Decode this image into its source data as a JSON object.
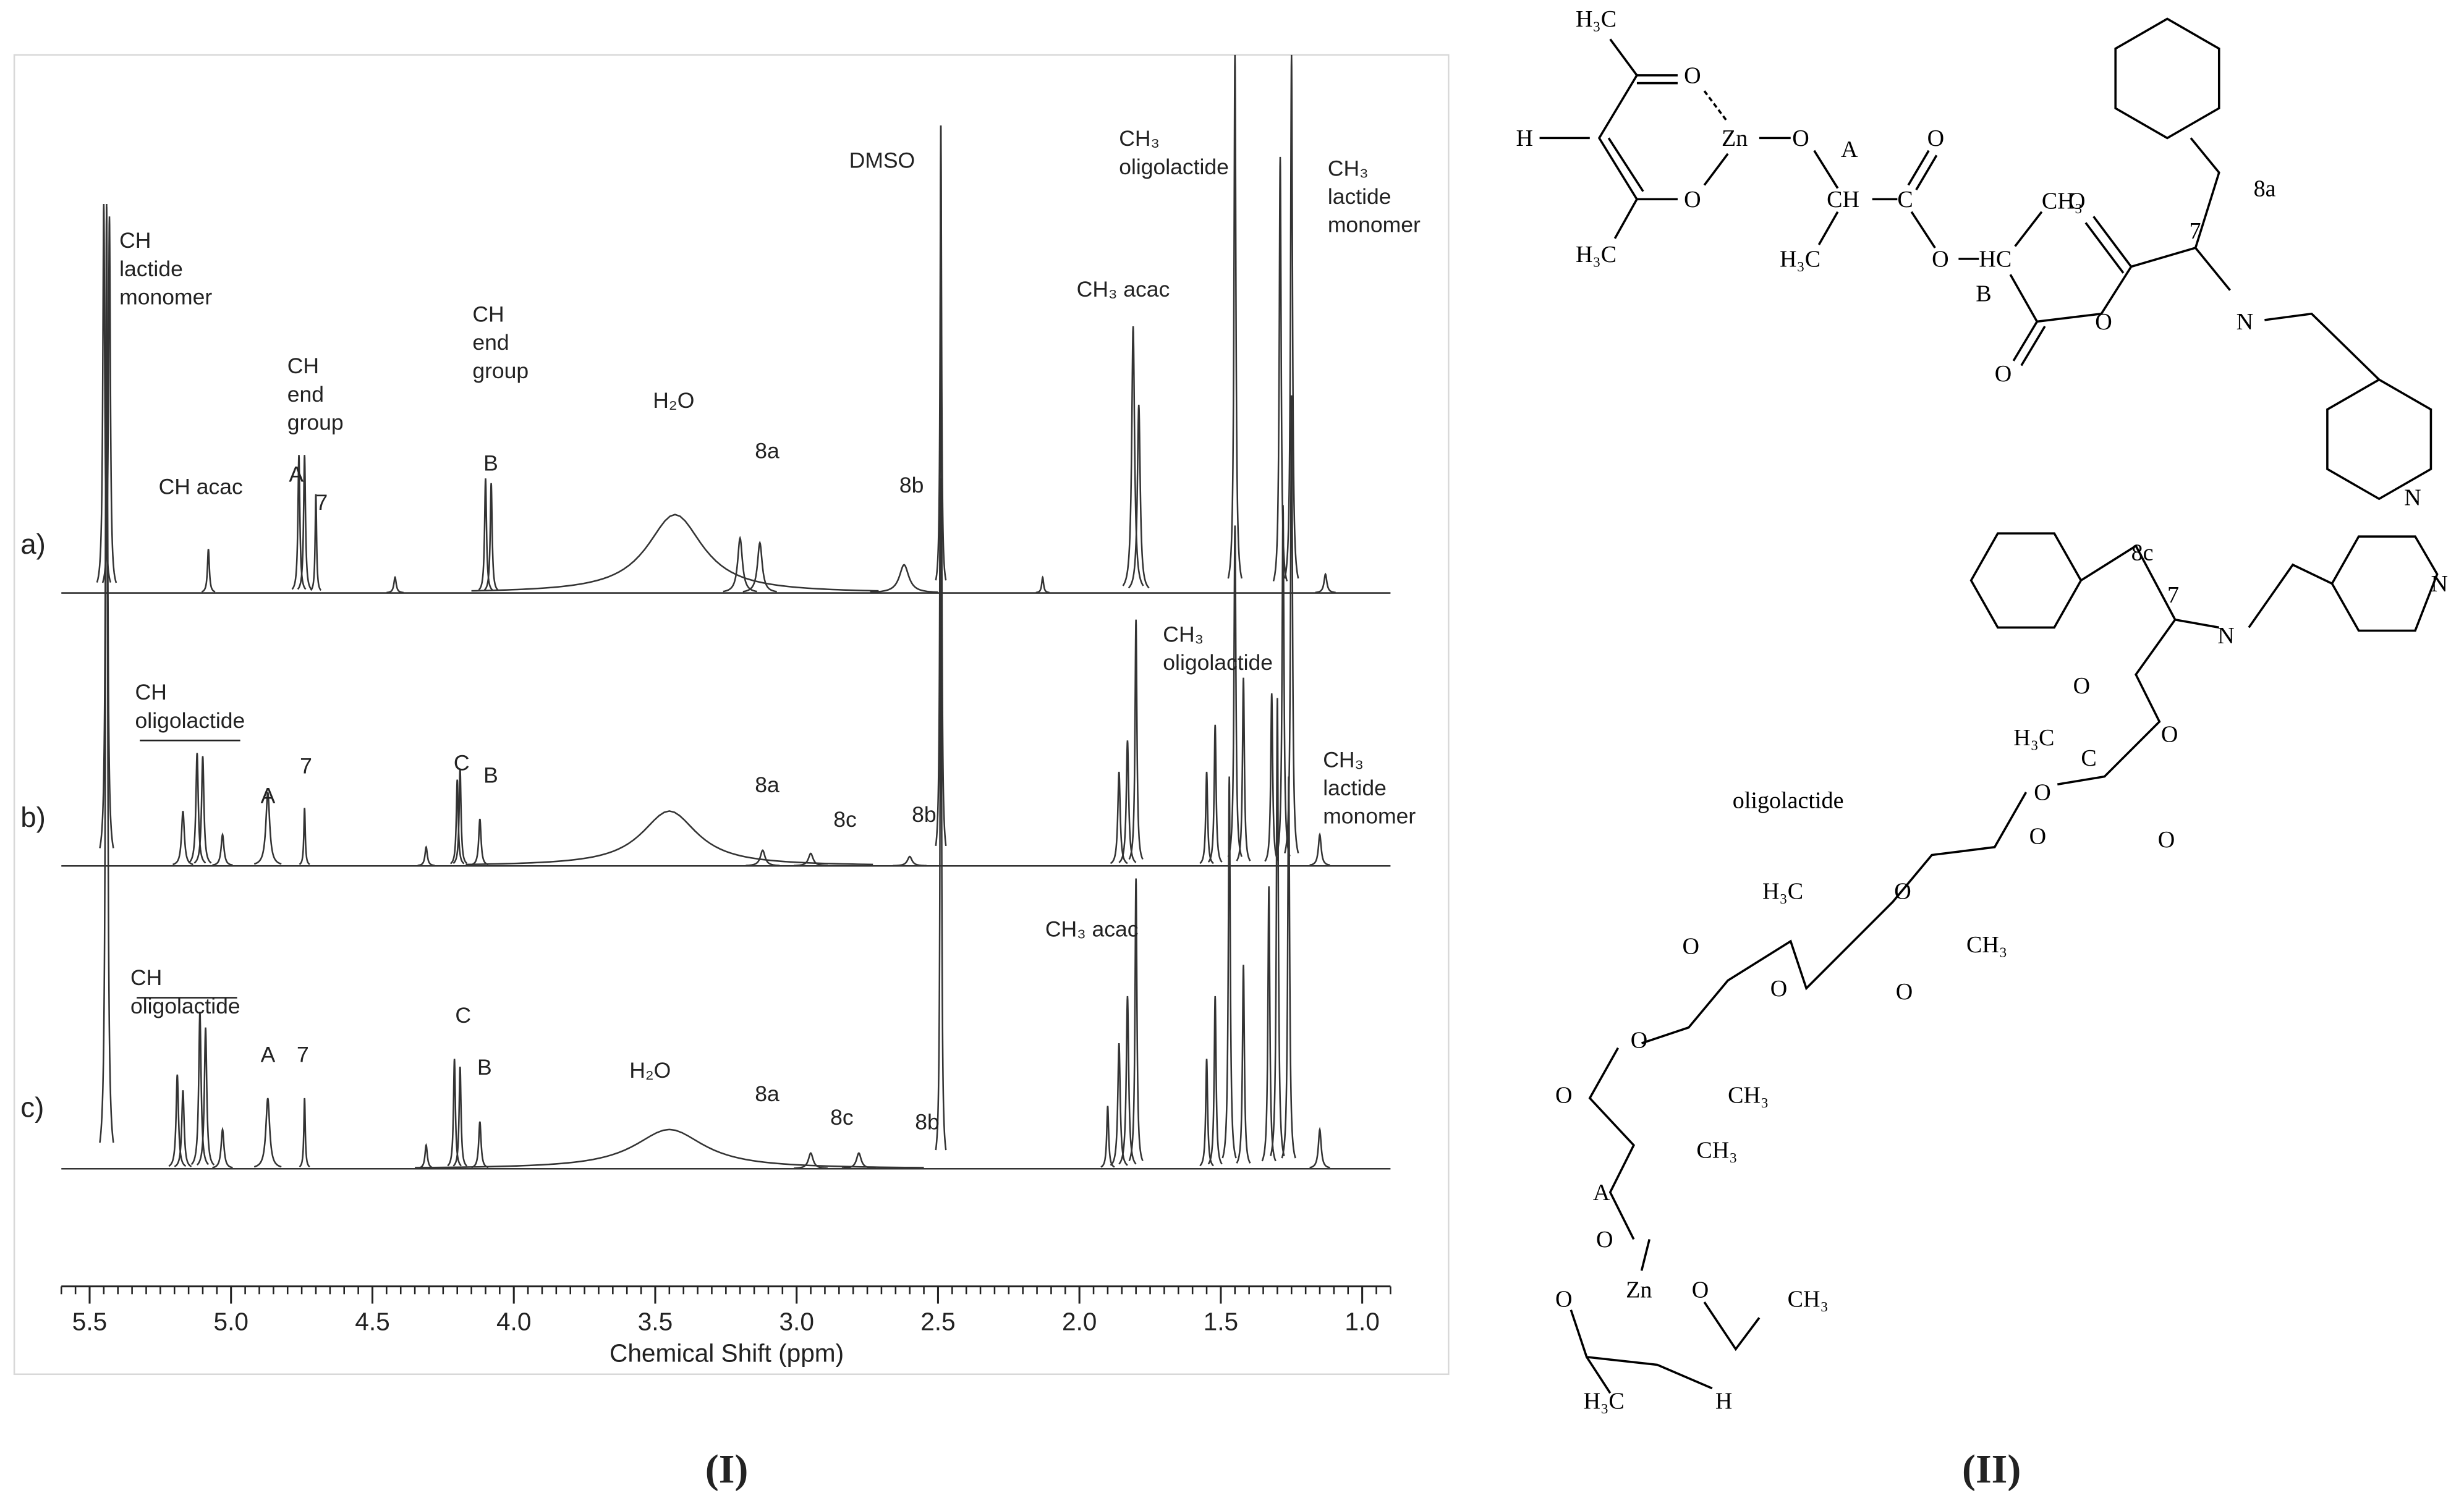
{
  "chart_data": {
    "type": "spectrum",
    "x_label": "Chemical Shift (ppm)",
    "xlim": [
      5.6,
      0.9
    ],
    "xticks": [
      5.5,
      {
        "value": 5,
        "label": "5.0"
      },
      4.5,
      {
        "value": 4,
        "label": "4.0"
      },
      3.5,
      {
        "value": 3,
        "label": "3.0"
      },
      2.5,
      {
        "value": 2,
        "label": "2.0"
      },
      1.5,
      {
        "value": 1,
        "label": "1.0"
      }
    ],
    "series": [
      {
        "name": "a)",
        "color": "#333333",
        "x": [
          5.45,
          5.43,
          5.08,
          4.76,
          4.74,
          4.7,
          4.42,
          4.1,
          4.08,
          3.43,
          3.2,
          3.13,
          2.62,
          2.49,
          2.13,
          1.81,
          1.79,
          1.45,
          1.29,
          1.25,
          1.13
        ],
        "values": [
          248,
          240,
          28,
          88,
          88,
          63,
          10,
          73,
          70,
          50,
          35,
          32,
          18,
          298,
          10,
          170,
          120,
          343,
          278,
          343,
          12
        ],
        "widths": [
          0.004,
          0.004,
          0.004,
          0.004,
          0.004,
          0.003,
          0.005,
          0.004,
          0.004,
          0.12,
          0.01,
          0.01,
          0.02,
          0.003,
          0.004,
          0.006,
          0.006,
          0.004,
          0.004,
          0.004,
          0.006
        ]
      },
      {
        "name": "b)",
        "color": "#333333",
        "x": [
          5.44,
          5.17,
          5.12,
          5.1,
          5.03,
          4.87,
          4.74,
          4.31,
          4.2,
          4.19,
          4.12,
          3.45,
          3.12,
          2.95,
          2.6,
          2.49,
          1.86,
          1.83,
          1.8,
          1.55,
          1.52,
          1.45,
          1.42,
          1.32,
          1.28,
          1.25,
          1.15
        ],
        "values": [
          420,
          35,
          72,
          70,
          20,
          47,
          37,
          12,
          55,
          62,
          30,
          35,
          10,
          8,
          6,
          472,
          60,
          80,
          157,
          60,
          90,
          217,
          120,
          110,
          230,
          300,
          20
        ],
        "widths": [
          0.004,
          0.006,
          0.005,
          0.005,
          0.006,
          0.008,
          0.003,
          0.005,
          0.004,
          0.004,
          0.005,
          0.12,
          0.01,
          0.01,
          0.01,
          0.003,
          0.005,
          0.005,
          0.004,
          0.004,
          0.004,
          0.004,
          0.004,
          0.004,
          0.004,
          0.004,
          0.006
        ]
      },
      {
        "name": "c)",
        "color": "#333333",
        "x": [
          5.44,
          5.19,
          5.17,
          5.11,
          5.09,
          5.03,
          4.87,
          4.74,
          4.31,
          4.21,
          4.19,
          4.12,
          3.45,
          2.95,
          2.78,
          2.49,
          1.9,
          1.86,
          1.83,
          1.8,
          1.55,
          1.52,
          1.47,
          1.42,
          1.33,
          1.3,
          1.26,
          1.15
        ],
        "values": [
          615,
          60,
          50,
          100,
          90,
          25,
          45,
          45,
          15,
          70,
          65,
          30,
          25,
          10,
          10,
          440,
          40,
          80,
          110,
          185,
          70,
          110,
          250,
          130,
          180,
          300,
          250,
          25
        ],
        "widths": [
          0.004,
          0.005,
          0.005,
          0.005,
          0.005,
          0.006,
          0.008,
          0.003,
          0.005,
          0.004,
          0.004,
          0.005,
          0.15,
          0.01,
          0.01,
          0.003,
          0.004,
          0.005,
          0.005,
          0.004,
          0.004,
          0.004,
          0.004,
          0.004,
          0.004,
          0.004,
          0.004,
          0.006
        ]
      }
    ],
    "annotations": [
      [
        "CH",
        "lactide",
        "monomer"
      ],
      [
        "CH acac"
      ],
      [
        "CH",
        "end",
        "group"
      ],
      [
        "A"
      ],
      [
        "7"
      ],
      [
        "CH",
        "end",
        "group"
      ],
      [
        "B"
      ],
      [
        "H₂O"
      ],
      [
        "8a"
      ],
      [
        "8b"
      ],
      [
        "DMSO"
      ],
      [
        "CH₃",
        "oligolactide"
      ],
      [
        "CH₃ acac"
      ],
      [
        "CH₃",
        "lactide",
        "monomer"
      ],
      [
        "CH",
        "oligolactide"
      ],
      [
        "A"
      ],
      [
        "7"
      ],
      [
        "C"
      ],
      [
        "B"
      ],
      [
        "8a"
      ],
      [
        "8c"
      ],
      [
        "8b"
      ],
      [
        "CH₃",
        "oligolactide"
      ],
      [
        "CH₃",
        "lactide",
        "monomer"
      ],
      [
        "CH",
        "oligolactide"
      ],
      [
        "A"
      ],
      [
        "7"
      ],
      [
        "C"
      ],
      [
        "B"
      ],
      [
        "H₂O"
      ],
      [
        "8a"
      ],
      [
        "8c"
      ],
      [
        "8b"
      ],
      [
        "CH₃ acac"
      ]
    ]
  },
  "structures": {
    "labels": [
      "H₃C",
      "O",
      "H",
      "Zn",
      "O",
      "A",
      "O",
      "CH",
      "C",
      "CH₃",
      "O",
      "H₃C",
      "H₃C",
      "O",
      "HC",
      "B",
      "O",
      "7",
      "8a",
      "N",
      "O",
      "O",
      "N",
      "8c",
      "7",
      "N",
      "N",
      "O",
      "H₃C",
      "C",
      "O",
      "oligolactide",
      "O",
      "O",
      "O",
      "H₃C",
      "O",
      "O",
      "CH₃",
      "O",
      "O",
      "O",
      "O",
      "CH₃",
      "A",
      "CH₃",
      "O",
      "Zn",
      "O",
      "O",
      "CH₃",
      "H₃C",
      "H"
    ]
  },
  "panel_labels": [
    "(I)",
    "(II)"
  ]
}
